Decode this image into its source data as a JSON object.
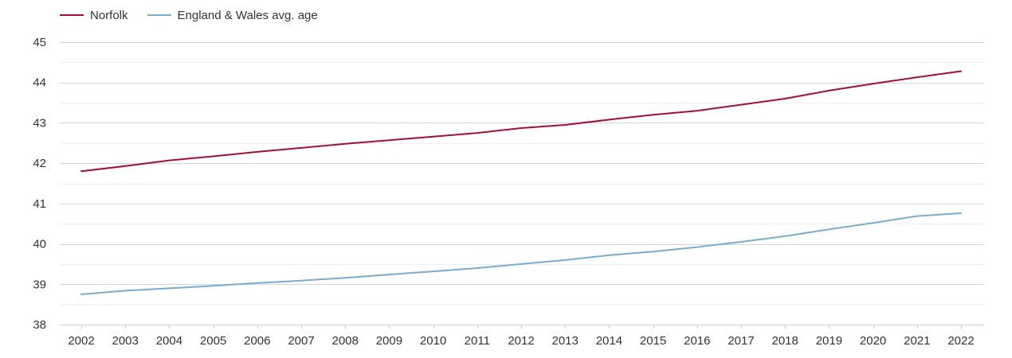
{
  "chart_data": {
    "type": "line",
    "title": "",
    "xlabel": "",
    "ylabel": "",
    "categories": [
      "2002",
      "2003",
      "2004",
      "2005",
      "2006",
      "2007",
      "2008",
      "2009",
      "2010",
      "2011",
      "2012",
      "2013",
      "2014",
      "2015",
      "2016",
      "2017",
      "2018",
      "2019",
      "2020",
      "2021",
      "2022"
    ],
    "ylim": [
      38,
      45
    ],
    "yticks": [
      38,
      39,
      40,
      41,
      42,
      43,
      44,
      45
    ],
    "grid": true,
    "legend_position": "top-left",
    "series": [
      {
        "name": "Norfolk",
        "color": "#a50f31",
        "values": [
          41.8,
          41.93,
          42.07,
          42.17,
          42.28,
          42.38,
          42.48,
          42.57,
          42.66,
          42.75,
          42.87,
          42.95,
          43.08,
          43.2,
          43.3,
          43.45,
          43.6,
          43.8,
          43.97,
          44.13,
          44.28
        ]
      },
      {
        "name": "England & Wales avg. age",
        "color": "#7aaccf",
        "values": [
          38.75,
          38.84,
          38.9,
          38.96,
          39.03,
          39.09,
          39.16,
          39.24,
          39.32,
          39.4,
          39.5,
          39.6,
          39.72,
          39.81,
          39.92,
          40.05,
          40.19,
          40.36,
          40.52,
          40.69,
          40.76
        ]
      }
    ]
  }
}
